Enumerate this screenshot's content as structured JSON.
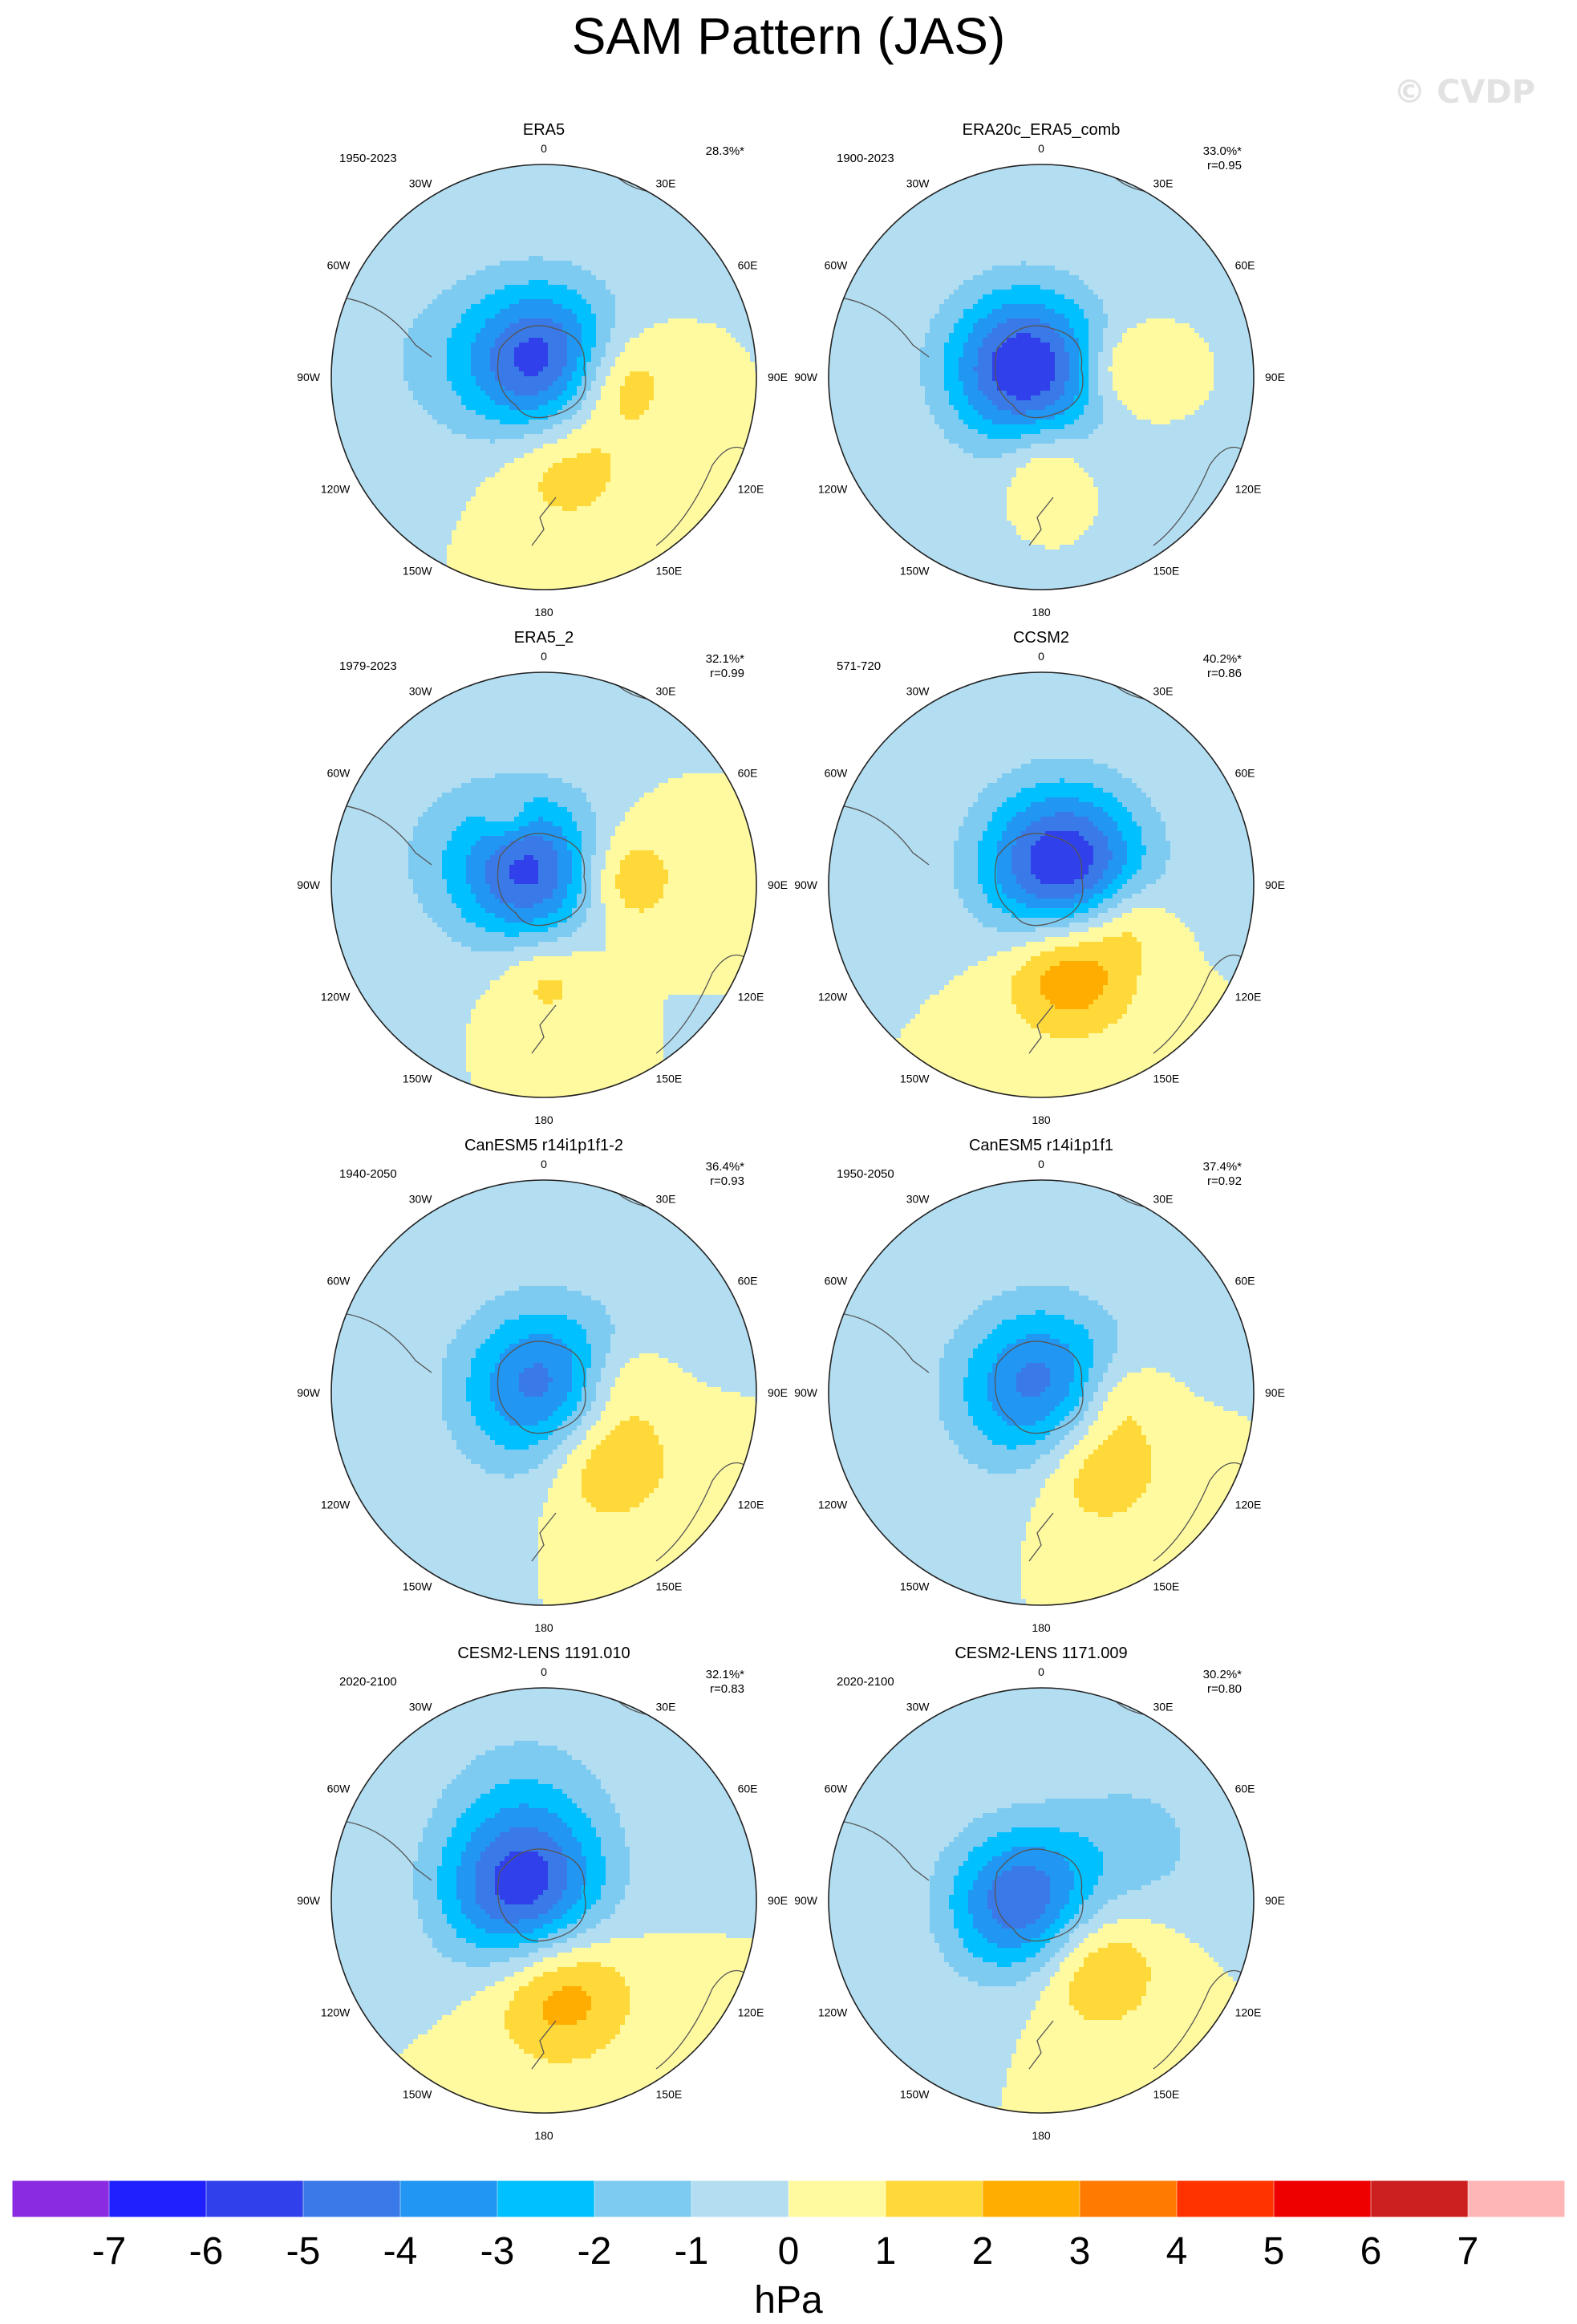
{
  "title": "SAM Pattern (JAS)",
  "watermark": "© CVDP",
  "chart_data": {
    "type": "polar-contour-map-grid",
    "projection": "south polar stereographic",
    "colorbar": {
      "units": "hPa",
      "levels": [
        -7,
        -6,
        -5,
        -4,
        -3,
        -2,
        -1,
        0,
        1,
        2,
        3,
        4,
        5,
        6,
        7
      ],
      "colors": [
        "#8a2be2",
        "#2020ff",
        "#3040ea",
        "#3a7ae8",
        "#2196f3",
        "#00c0ff",
        "#7ecbf2",
        "#b3def2",
        "#fffaa0",
        "#ffd83a",
        "#ffad00",
        "#ff7a00",
        "#ff3300",
        "#ee0000",
        "#cc2020",
        "#ffb6b6"
      ]
    },
    "lon_labels": {
      "top": "0",
      "tr": "30E",
      "rt": "60E",
      "right": "90E",
      "rb": "120E",
      "br": "150E",
      "bottom": "180",
      "bl": "150W",
      "lb": "120W",
      "left": "90W",
      "lt": "60W",
      "tl": "30W"
    },
    "panels": [
      {
        "name": "ERA5",
        "period": "1950-2023",
        "pct": "28.3%*",
        "r": "",
        "fields": [
          {
            "lon": 0,
            "lat": -82,
            "amp": -5.5,
            "sig": 0.26
          },
          {
            "lon": 92,
            "lat": -52,
            "amp": 2.6,
            "sig": 0.18
          },
          {
            "lon": 165,
            "lat": -46,
            "amp": 2.0,
            "sig": 0.22
          },
          {
            "lon": 280,
            "lat": -35,
            "amp": -0.9,
            "sig": 0.3
          }
        ]
      },
      {
        "name": "ERA20c_ERA5_comb",
        "period": "1900-2023",
        "pct": "33.0%*",
        "r": "r=0.95",
        "fields": [
          {
            "lon": 300,
            "lat": -80,
            "amp": -6.0,
            "sig": 0.26
          },
          {
            "lon": 85,
            "lat": -48,
            "amp": 2.0,
            "sig": 0.14
          },
          {
            "lon": 178,
            "lat": -46,
            "amp": 1.6,
            "sig": 0.14
          }
        ]
      },
      {
        "name": "ERA5_2",
        "period": "1979-2023",
        "pct": "32.1%*",
        "r": "r=0.99",
        "fields": [
          {
            "lon": 320,
            "lat": -82,
            "amp": -5.0,
            "sig": 0.25
          },
          {
            "lon": 85,
            "lat": -50,
            "amp": 2.5,
            "sig": 0.18
          },
          {
            "lon": 178,
            "lat": -44,
            "amp": 1.7,
            "sig": 0.17
          },
          {
            "lon": 290,
            "lat": -40,
            "amp": -0.9,
            "sig": 0.3
          },
          {
            "lon": 330,
            "lat": -50,
            "amp": 1.3,
            "sig": 0.08
          }
        ]
      },
      {
        "name": "CCSM2",
        "period": "571-720",
        "pct": "40.2%*",
        "r": "r=0.86",
        "fields": [
          {
            "lon": 50,
            "lat": -75,
            "amp": -6.2,
            "sig": 0.27
          },
          {
            "lon": 160,
            "lat": -46,
            "amp": 3.6,
            "sig": 0.22
          },
          {
            "lon": 110,
            "lat": -42,
            "amp": 1.5,
            "sig": 0.14
          }
        ]
      },
      {
        "name": "CanESM5 r14i1p1f1-2",
        "period": "1940-2050",
        "pct": "36.4%*",
        "r": "r=0.93",
        "fields": [
          {
            "lon": 0,
            "lat": -88,
            "amp": -4.6,
            "sig": 0.28
          },
          {
            "lon": 135,
            "lat": -46,
            "amp": 2.9,
            "sig": 0.22
          },
          {
            "lon": 80,
            "lat": -50,
            "amp": 1.4,
            "sig": 0.14
          }
        ]
      },
      {
        "name": "CanESM5 r14i1p1f1",
        "period": "1950-2050",
        "pct": "37.4%*",
        "r": "r=0.92",
        "fields": [
          {
            "lon": 0,
            "lat": -88,
            "amp": -4.6,
            "sig": 0.28
          },
          {
            "lon": 140,
            "lat": -46,
            "amp": 2.7,
            "sig": 0.22
          },
          {
            "lon": 90,
            "lat": -50,
            "amp": 1.4,
            "sig": 0.14
          }
        ]
      },
      {
        "name": "CESM2-LENS 1191.010",
        "period": "2020-2100",
        "pct": "32.1%*",
        "r": "r=0.83",
        "fields": [
          {
            "lon": 290,
            "lat": -78,
            "amp": -5.4,
            "sig": 0.27
          },
          {
            "lon": 170,
            "lat": -45,
            "amp": 3.1,
            "sig": 0.24
          },
          {
            "lon": 350,
            "lat": -40,
            "amp": -1.3,
            "sig": 0.3
          }
        ]
      },
      {
        "name": "CESM2-LENS 1171.009",
        "period": "2020-2100",
        "pct": "30.2%*",
        "r": "r=0.80",
        "fields": [
          {
            "lon": 260,
            "lat": -80,
            "amp": -5.0,
            "sig": 0.25
          },
          {
            "lon": 140,
            "lat": -48,
            "amp": 2.6,
            "sig": 0.22
          },
          {
            "lon": 60,
            "lat": -35,
            "amp": -1.3,
            "sig": 0.28
          }
        ]
      }
    ]
  }
}
